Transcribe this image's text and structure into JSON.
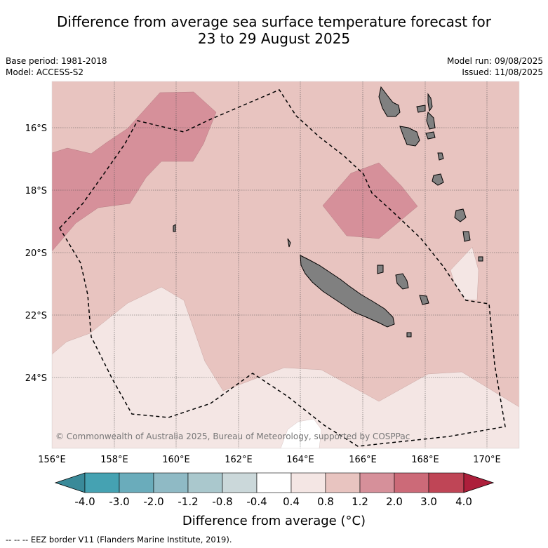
{
  "title_line1": "Difference from average sea surface temperature forecast for",
  "title_line2": "23 to 29 August 2025",
  "meta": {
    "base_period": "Base period: 1981-2018",
    "model": "Model: ACCESS-S2",
    "model_run": "Model run: 09/08/2025",
    "issued": "Issued: 11/08/2025"
  },
  "copyright": "© Commonwealth of Australia 2025, Bureau of Meteorology, supported by COSPPac",
  "lat_ticks": [
    "16°S",
    "18°S",
    "20°S",
    "22°S",
    "24°S"
  ],
  "lon_ticks": [
    "156°E",
    "158°E",
    "160°E",
    "162°E",
    "164°E",
    "166°E",
    "168°E",
    "170°E"
  ],
  "colorbar": {
    "labels": [
      "-4.0",
      "-3.0",
      "-2.0",
      "-1.2",
      "-0.8",
      "-0.4",
      "0.4",
      "0.8",
      "1.2",
      "2.0",
      "3.0",
      "4.0"
    ],
    "colors": [
      "#3a8a99",
      "#45a2b2",
      "#6aacbb",
      "#8fbac5",
      "#aac8cd",
      "#cbd8da",
      "#ffffff",
      "#f4e6e4",
      "#e8c4c0",
      "#d6909a",
      "#cc6a78",
      "#bf4556",
      "#ad1f3b"
    ],
    "label": "Difference from average (°C)"
  },
  "eez_legend": "--  --  -- EEZ border V11 (Flanders Marine Institute, 2019).",
  "colors": {
    "band_0_4_0_8": "#f4e6e4",
    "band_0_8_1_2": "#e8c4c0",
    "band_1_2_2_0": "#d6909a",
    "land": "#808080"
  }
}
